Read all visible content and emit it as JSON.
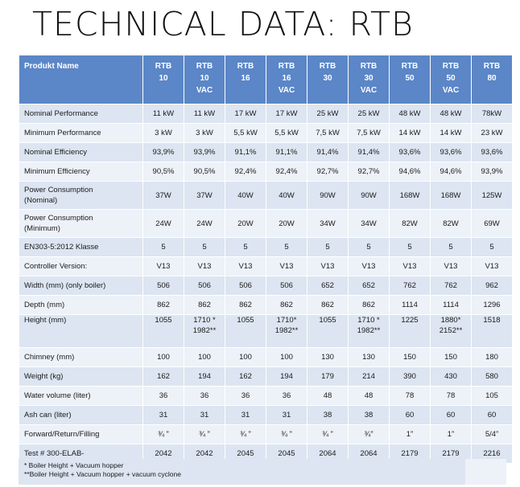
{
  "title": "TECHNICAL DATA:  RTB",
  "table": {
    "header_label": "Produkt Name",
    "models": [
      [
        "RTB",
        "10"
      ],
      [
        "RTB",
        "10",
        "VAC"
      ],
      [
        "RTB",
        "16"
      ],
      [
        "RTB",
        "16",
        "VAC"
      ],
      [
        "RTB",
        "30"
      ],
      [
        "RTB",
        "30",
        "VAC"
      ],
      [
        "RTB",
        "50"
      ],
      [
        "RTB",
        "50",
        "VAC"
      ],
      [
        "RTB",
        "80"
      ]
    ],
    "rows": [
      {
        "label": [
          "Nominal Performance"
        ],
        "values": [
          [
            "11 kW"
          ],
          [
            "11 kW"
          ],
          [
            "17 kW"
          ],
          [
            "17 kW"
          ],
          [
            "25 kW"
          ],
          [
            "25 kW"
          ],
          [
            "48 kW"
          ],
          [
            "48 kW"
          ],
          [
            "78kW"
          ]
        ]
      },
      {
        "label": [
          "Minimum Performance"
        ],
        "values": [
          [
            "3 kW"
          ],
          [
            "3 kW"
          ],
          [
            "5,5 kW"
          ],
          [
            "5,5 kW"
          ],
          [
            "7,5 kW"
          ],
          [
            "7,5 kW"
          ],
          [
            "14 kW"
          ],
          [
            "14 kW"
          ],
          [
            "23 kW"
          ]
        ]
      },
      {
        "label": [
          "Nominal Efficiency"
        ],
        "values": [
          [
            "93,9%"
          ],
          [
            "93,9%"
          ],
          [
            "91,1%"
          ],
          [
            "91,1%"
          ],
          [
            "91,4%"
          ],
          [
            "91,4%"
          ],
          [
            "93,6%"
          ],
          [
            "93,6%"
          ],
          [
            "93,6%"
          ]
        ]
      },
      {
        "label": [
          "Minimum Efficiency"
        ],
        "values": [
          [
            "90,5%"
          ],
          [
            "90,5%"
          ],
          [
            "92,4%"
          ],
          [
            "92,4%"
          ],
          [
            "92,7%"
          ],
          [
            "92,7%"
          ],
          [
            "94,6%"
          ],
          [
            "94,6%"
          ],
          [
            "93,9%"
          ]
        ]
      },
      {
        "label": [
          "Power Consumption",
          "(Nominal)"
        ],
        "values": [
          [
            "37W"
          ],
          [
            "37W"
          ],
          [
            "40W"
          ],
          [
            "40W"
          ],
          [
            "90W"
          ],
          [
            "90W"
          ],
          [
            "168W"
          ],
          [
            "168W"
          ],
          [
            "125W"
          ]
        ]
      },
      {
        "label": [
          "Power Consumption",
          "(Minimum)"
        ],
        "values": [
          [
            "24W"
          ],
          [
            "24W"
          ],
          [
            "20W"
          ],
          [
            "20W"
          ],
          [
            "34W"
          ],
          [
            "34W"
          ],
          [
            "82W"
          ],
          [
            "82W"
          ],
          [
            "69W"
          ]
        ]
      },
      {
        "label": [
          "EN303-5:2012 Klasse"
        ],
        "values": [
          [
            "5"
          ],
          [
            "5"
          ],
          [
            "5"
          ],
          [
            "5"
          ],
          [
            "5"
          ],
          [
            "5"
          ],
          [
            "5"
          ],
          [
            "5"
          ],
          [
            "5"
          ]
        ]
      },
      {
        "label": [
          "Controller Version:"
        ],
        "values": [
          [
            "V13"
          ],
          [
            "V13"
          ],
          [
            "V13"
          ],
          [
            "V13"
          ],
          [
            "V13"
          ],
          [
            "V13"
          ],
          [
            "V13"
          ],
          [
            "V13"
          ],
          [
            "V13"
          ]
        ]
      },
      {
        "label": [
          "Width (mm) (only boiler)"
        ],
        "values": [
          [
            "506"
          ],
          [
            "506"
          ],
          [
            "506"
          ],
          [
            "506"
          ],
          [
            "652"
          ],
          [
            "652"
          ],
          [
            "762"
          ],
          [
            "762"
          ],
          [
            "962"
          ]
        ]
      },
      {
        "label": [
          "Depth (mm)"
        ],
        "values": [
          [
            "862"
          ],
          [
            "862"
          ],
          [
            "862"
          ],
          [
            "862"
          ],
          [
            "862"
          ],
          [
            "862"
          ],
          [
            "1114"
          ],
          [
            "1114"
          ],
          [
            "1296"
          ]
        ]
      },
      {
        "label": [
          "Height (mm)"
        ],
        "values": [
          [
            "1055"
          ],
          [
            "1710 *",
            "1982**"
          ],
          [
            "1055"
          ],
          [
            "1710*",
            "1982**"
          ],
          [
            "1055"
          ],
          [
            "1710 *",
            "1982**"
          ],
          [
            "1225"
          ],
          [
            "1880*",
            "2152**"
          ],
          [
            "1518"
          ]
        ]
      },
      {
        "label": [
          "Chimney (mm)"
        ],
        "values": [
          [
            "100"
          ],
          [
            "100"
          ],
          [
            "100"
          ],
          [
            "100"
          ],
          [
            "130"
          ],
          [
            "130"
          ],
          [
            "150"
          ],
          [
            "150"
          ],
          [
            "180"
          ]
        ]
      },
      {
        "label": [
          "Weight (kg)"
        ],
        "values": [
          [
            "162"
          ],
          [
            "194"
          ],
          [
            "162"
          ],
          [
            "194"
          ],
          [
            "179"
          ],
          [
            "214"
          ],
          [
            "390"
          ],
          [
            "430"
          ],
          [
            "580"
          ]
        ]
      },
      {
        "label": [
          "Water volume (liter)"
        ],
        "values": [
          [
            "36"
          ],
          [
            "36"
          ],
          [
            "36"
          ],
          [
            "36"
          ],
          [
            "48"
          ],
          [
            "48"
          ],
          [
            "78"
          ],
          [
            "78"
          ],
          [
            "105"
          ]
        ]
      },
      {
        "label": [
          "Ash can (liter)"
        ],
        "values": [
          [
            "31"
          ],
          [
            "31"
          ],
          [
            "31"
          ],
          [
            "31"
          ],
          [
            "38"
          ],
          [
            "38"
          ],
          [
            "60"
          ],
          [
            "60"
          ],
          [
            "60"
          ]
        ]
      },
      {
        "label": [
          "Forward/Return/Filling"
        ],
        "values": [
          [
            "¾ ”"
          ],
          [
            "¾ ”"
          ],
          [
            "¾ ”"
          ],
          [
            "¾ ”"
          ],
          [
            "¾ ”"
          ],
          [
            "¾”"
          ],
          [
            "1”"
          ],
          [
            "1”"
          ],
          [
            "5/4”"
          ]
        ]
      },
      {
        "label": [
          "Test # 300-ELAB-"
        ],
        "values": [
          [
            "2042"
          ],
          [
            "2042"
          ],
          [
            "2045"
          ],
          [
            "2045"
          ],
          [
            "2064"
          ],
          [
            "2064"
          ],
          [
            "2179"
          ],
          [
            "2179"
          ],
          [
            "2216"
          ]
        ]
      }
    ],
    "footnotes": [
      "* Boiler Height + Vacuum hopper",
      "**Boiler Height + Vacuum hopper + vacuum cyclone"
    ]
  }
}
